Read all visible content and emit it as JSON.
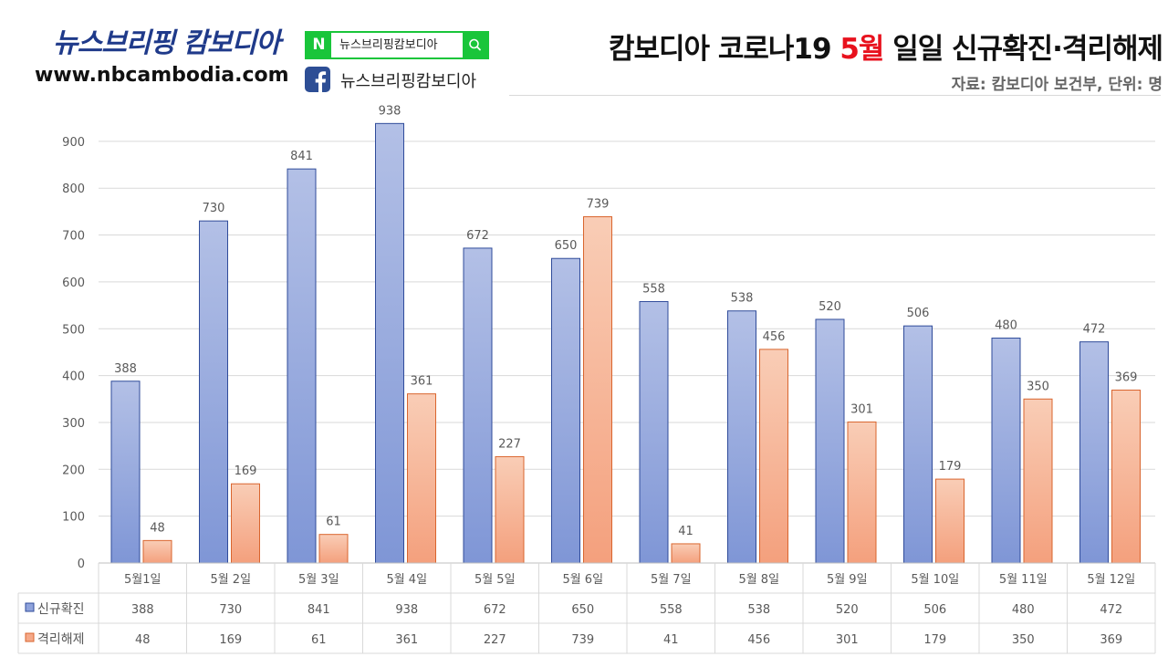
{
  "header": {
    "brand_name": "뉴스브리핑 캄보디아",
    "brand_url": "www.nbcambodia.com",
    "naver_letter": "N",
    "naver_search_text": "뉴스브리핑캄보디아",
    "facebook_text": "뉴스브리핑캄보디아",
    "title_prefix": "캄보디아 코로나19 ",
    "title_highlight": "5월",
    "title_suffix": " 일일 신규확진·격리해제",
    "source": "자료: 캄보디아 보건부, 단위: 명"
  },
  "colors": {
    "confirmed": "#8fa3dc",
    "released": "#f5a989",
    "title_highlight": "#e8111d",
    "naver_green": "#19c53a",
    "facebook_blue": "#2d4e95"
  },
  "icons": {
    "naver": "naver-logo-icon",
    "search": "search-icon",
    "facebook": "facebook-logo-icon"
  },
  "chart_data": {
    "type": "bar",
    "categories": [
      "5월1일",
      "5월 2일",
      "5월 3일",
      "5월 4일",
      "5월 5일",
      "5월 6일",
      "5월 7일",
      "5월 8일",
      "5월 9일",
      "5월 10일",
      "5월 11일",
      "5월 12일"
    ],
    "series": [
      {
        "name": "신규확진",
        "values": [
          388,
          730,
          841,
          938,
          672,
          650,
          558,
          538,
          520,
          506,
          480,
          472
        ]
      },
      {
        "name": "격리해제",
        "values": [
          48,
          169,
          61,
          361,
          227,
          739,
          41,
          456,
          301,
          179,
          350,
          369
        ]
      }
    ],
    "yticks": [
      0,
      100,
      200,
      300,
      400,
      500,
      600,
      700,
      800,
      900
    ],
    "ylim": [
      0,
      900
    ],
    "grid": true,
    "legend": "data-table-below"
  }
}
